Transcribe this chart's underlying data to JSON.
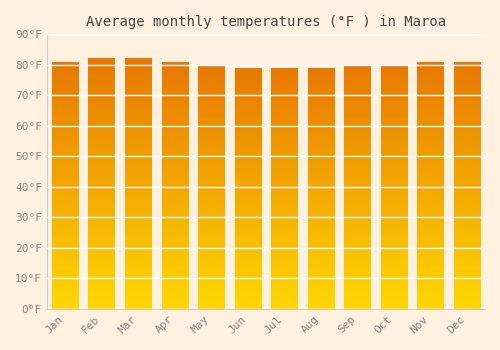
{
  "title": "Average monthly temperatures (°F ) in Maroa",
  "months": [
    "Jan",
    "Feb",
    "Mar",
    "Apr",
    "May",
    "Jun",
    "Jul",
    "Aug",
    "Sep",
    "Oct",
    "Nov",
    "Dec"
  ],
  "values": [
    81,
    82,
    82,
    81,
    80,
    79,
    79,
    79,
    80,
    80,
    81,
    81
  ],
  "bar_color_bottom": "#FFD700",
  "bar_color_top": "#E87800",
  "ylim": [
    0,
    90
  ],
  "yticks": [
    0,
    10,
    20,
    30,
    40,
    50,
    60,
    70,
    80,
    90
  ],
  "ytick_labels": [
    "0°F",
    "10°F",
    "20°F",
    "30°F",
    "40°F",
    "50°F",
    "60°F",
    "70°F",
    "80°F",
    "90°F"
  ],
  "background_color": "#FFF0E0",
  "grid_color": "#FFFFFF",
  "title_fontsize": 10,
  "tick_fontsize": 8,
  "font_family": "monospace",
  "tick_color": "#888888",
  "title_color": "#444444"
}
